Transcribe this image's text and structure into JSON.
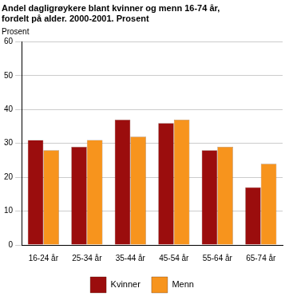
{
  "chart_data": {
    "type": "bar",
    "title": [
      "Andel dagligrøykere blant kvinner og menn 16-74 år,",
      "fordelt på alder. 2000-2001. Prosent"
    ],
    "y_label": "Prosent",
    "categories": [
      "16-24 år",
      "25-34 år",
      "35-44 år",
      "45-54 år",
      "55-64 år",
      "65-74 år"
    ],
    "series": [
      {
        "name": "Kvinner",
        "color": "#9b0d0d",
        "values": [
          31,
          29,
          37,
          36,
          28,
          17
        ]
      },
      {
        "name": "Menn",
        "color": "#f7941d",
        "values": [
          28,
          31,
          32,
          37,
          29,
          24
        ]
      }
    ],
    "ylim": [
      0,
      60
    ],
    "yticks": [
      0,
      10,
      20,
      30,
      40,
      50,
      60
    ],
    "grid": true,
    "legend": "bottom"
  }
}
